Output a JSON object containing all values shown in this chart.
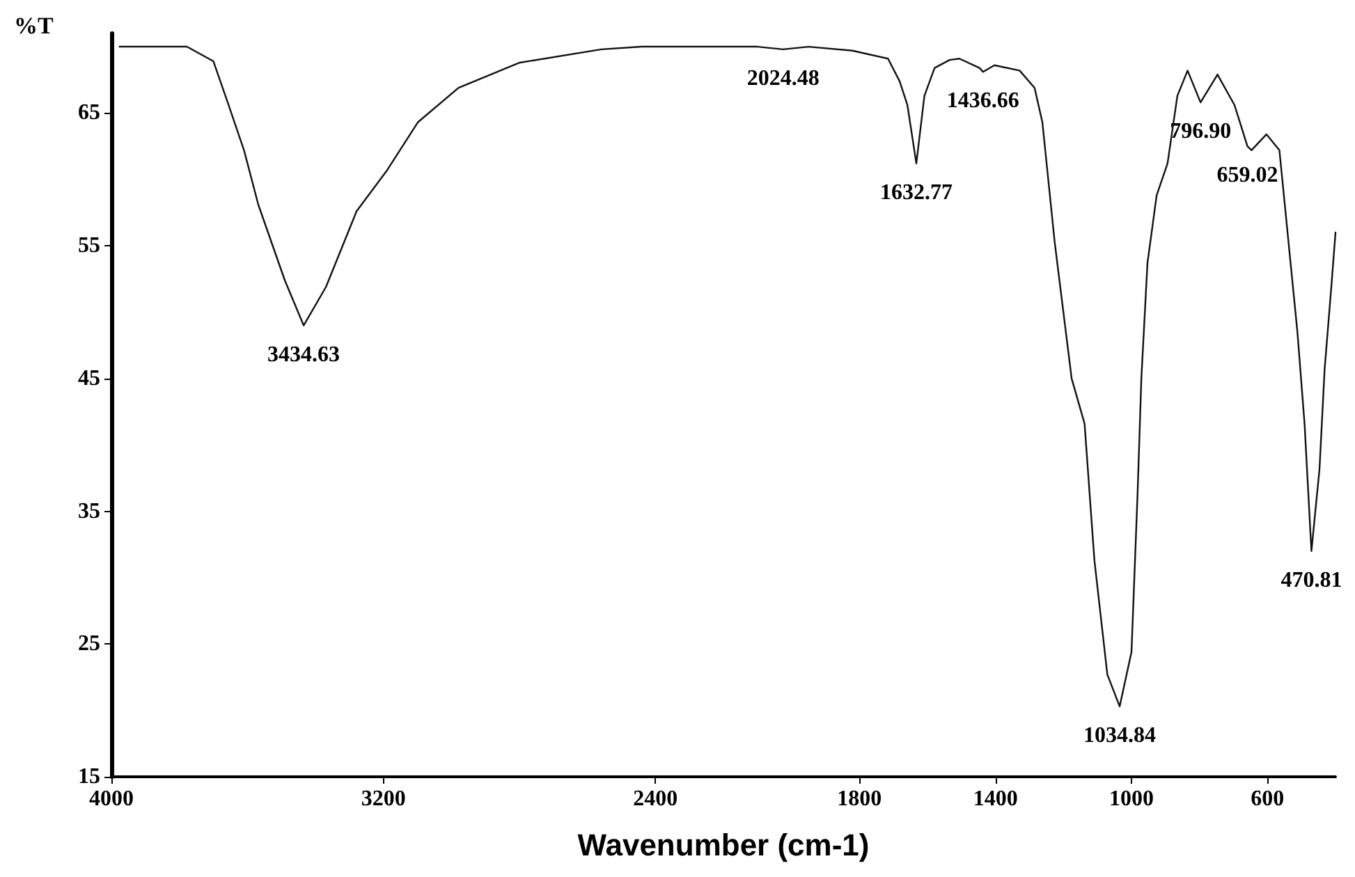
{
  "chart_data": {
    "type": "line",
    "xlabel": "Wavenumber (cm-1)",
    "ylabel": "%T",
    "x": [
      3976,
      3778,
      3700,
      3658,
      3610,
      3568,
      3490,
      3434.63,
      3369,
      3279,
      3189,
      3099,
      2979,
      2799,
      2559,
      2440,
      2100,
      2024.48,
      1950,
      1821,
      1716,
      1682,
      1659,
      1632.77,
      1609,
      1579,
      1535,
      1506,
      1447,
      1436.66,
      1403,
      1329,
      1285,
      1262,
      1226,
      1176,
      1138,
      1109,
      1071,
      1034.84,
      1000,
      982,
      971,
      953,
      926,
      894,
      865,
      835,
      796.9,
      747,
      697,
      659.02,
      647,
      603,
      565,
      541,
      512,
      491,
      470.81,
      447,
      432,
      412,
      400
    ],
    "series": [
      {
        "color": "#111111",
        "values": [
          70,
          70,
          68.9,
          65.8,
          62.2,
          58.1,
          52.4,
          49,
          51.9,
          57.6,
          60.7,
          64.3,
          66.9,
          68.8,
          69.8,
          70,
          70,
          69.8,
          70,
          69.7,
          69.1,
          67.4,
          65.6,
          61.2,
          66.3,
          68.4,
          69,
          69.1,
          68.4,
          68.1,
          68.6,
          68.2,
          66.9,
          64.3,
          55.3,
          45,
          41.6,
          31.3,
          22.7,
          20.3,
          24.4,
          36.4,
          45,
          53.7,
          58.8,
          61.2,
          66.3,
          68.2,
          65.8,
          67.9,
          65.6,
          62.5,
          62.2,
          63.4,
          62.2,
          56,
          48.5,
          41.6,
          32,
          38.2,
          45.7,
          52,
          56
        ]
      }
    ],
    "annotations": [
      {
        "text": "3434.63",
        "x": 3434.63,
        "y": 49
      },
      {
        "text": "2024.48",
        "x": 2024.48,
        "y": 69.8
      },
      {
        "text": "1632.77",
        "x": 1632.77,
        "y": 61.2
      },
      {
        "text": "1436.66",
        "x": 1436.66,
        "y": 68.1
      },
      {
        "text": "1034.84",
        "x": 1034.84,
        "y": 20.3
      },
      {
        "text": "796.90",
        "x": 796.9,
        "y": 65.8
      },
      {
        "text": "659.02",
        "x": 659.02,
        "y": 62.5
      },
      {
        "text": "470.81",
        "x": 470.81,
        "y": 32
      }
    ],
    "xlim": [
      4000,
      400
    ],
    "xticks": [
      4000,
      3200,
      2400,
      1800,
      1400,
      1000,
      600
    ],
    "ylim": [
      15,
      71
    ],
    "yticks": [
      15,
      25,
      35,
      45,
      55,
      65
    ],
    "marker": "none",
    "line_style": "solid"
  }
}
